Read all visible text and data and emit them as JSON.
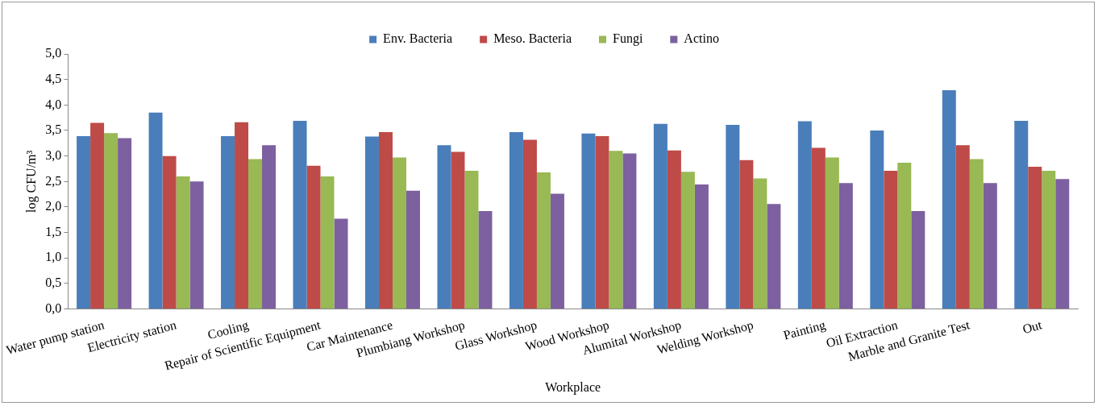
{
  "chart_data": {
    "type": "bar",
    "xlabel": "Workplace",
    "ylabel": "log CFU/m³",
    "categories": [
      "Water pump station",
      "Electricity station",
      "Cooling",
      "Repair of Scientific Equipment",
      "Car Maintenance",
      "Plumbiang Workshop",
      "Glass Workshop",
      "Wood Workshop",
      "Alumital Workshop",
      "Welding Workshop",
      "Painting",
      "Oil Extraction",
      "Marble and Granite Test",
      "Out"
    ],
    "series": [
      {
        "name": "Env. Bacteria",
        "color": "#4a7ebb",
        "values": [
          3.39,
          3.85,
          3.39,
          3.69,
          3.38,
          3.21,
          3.47,
          3.44,
          3.63,
          3.61,
          3.68,
          3.5,
          4.29,
          3.69
        ]
      },
      {
        "name": "Meso. Bacteria",
        "color": "#be4b48",
        "values": [
          3.65,
          3.0,
          3.66,
          2.81,
          3.47,
          3.08,
          3.32,
          3.39,
          3.11,
          2.92,
          3.16,
          2.71,
          3.21,
          2.79
        ]
      },
      {
        "name": "Fungi",
        "color": "#98b954",
        "values": [
          3.45,
          2.6,
          2.94,
          2.6,
          2.97,
          2.71,
          2.68,
          3.1,
          2.69,
          2.56,
          2.97,
          2.87,
          2.94,
          2.71
        ]
      },
      {
        "name": "Actino",
        "color": "#7d60a0",
        "values": [
          3.35,
          2.5,
          3.21,
          1.77,
          2.32,
          1.92,
          2.26,
          3.05,
          2.44,
          2.06,
          2.47,
          1.92,
          2.47,
          2.55
        ]
      }
    ],
    "ylim": [
      0,
      5
    ],
    "yticks": [
      {
        "value": 0,
        "label": "0,0"
      },
      {
        "value": 0.5,
        "label": "0,5"
      },
      {
        "value": 1,
        "label": "1,0"
      },
      {
        "value": 1.5,
        "label": "1,5"
      },
      {
        "value": 2,
        "label": "2,0"
      },
      {
        "value": 2.5,
        "label": "2,5"
      },
      {
        "value": 3,
        "label": "3,0"
      },
      {
        "value": 3.5,
        "label": "3,5"
      },
      {
        "value": 4,
        "label": "4,0"
      },
      {
        "value": 4.5,
        "label": "4,5"
      },
      {
        "value": 5,
        "label": "5,0"
      }
    ],
    "grid": false,
    "legend": "top"
  }
}
